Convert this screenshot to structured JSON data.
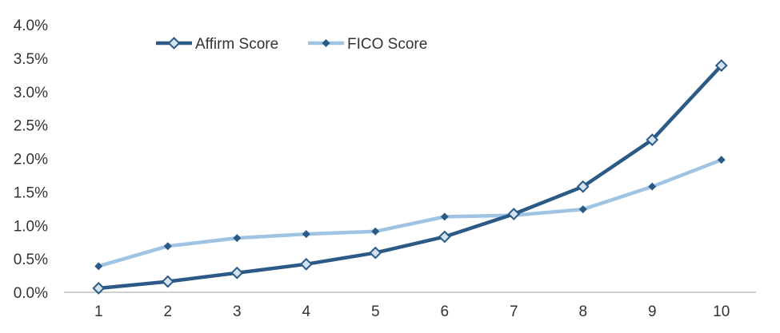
{
  "chart_data": {
    "type": "line",
    "title": "",
    "xlabel": "",
    "ylabel": "",
    "x": [
      "1",
      "2",
      "3",
      "4",
      "5",
      "6",
      "7",
      "8",
      "9",
      "10"
    ],
    "ylim": [
      0,
      0.04
    ],
    "y_ticks": [
      "0.0%",
      "0.5%",
      "1.0%",
      "1.5%",
      "2.0%",
      "2.5%",
      "3.0%",
      "3.5%",
      "4.0%"
    ],
    "grid": false,
    "legend_position": "top-left",
    "series": [
      {
        "name": "Affirm Score",
        "color": "#2b5a87",
        "marker": "diamond-open",
        "values": [
          0.0006,
          0.0016,
          0.0029,
          0.0042,
          0.0059,
          0.0083,
          0.0117,
          0.0158,
          0.0228,
          0.0339
        ]
      },
      {
        "name": "FICO Score",
        "color": "#9fc3e3",
        "marker": "diamond-filled",
        "values": [
          0.0039,
          0.0069,
          0.0081,
          0.0087,
          0.0091,
          0.0113,
          0.0115,
          0.0124,
          0.0158,
          0.0198
        ]
      }
    ]
  }
}
